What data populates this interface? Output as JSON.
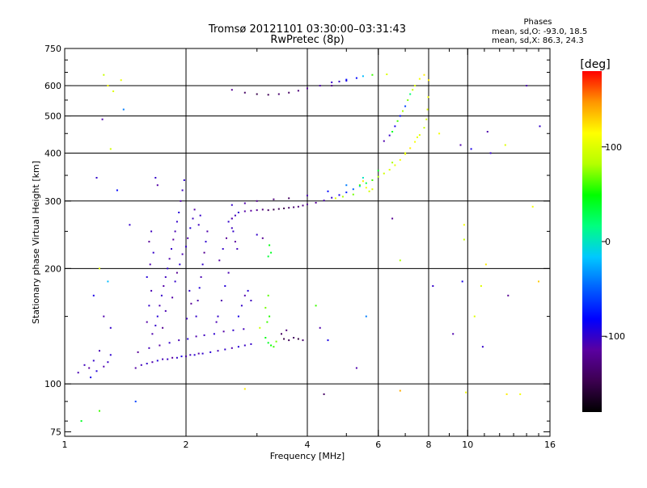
{
  "header": {
    "title_line1": "Tromsø 20121101 03:30:00–03:31:43",
    "title_line2": "RwPretec (8p)",
    "stats_title": "Phases",
    "stats_o": "mean, sd,O: -93.0, 18.5",
    "stats_x": "mean, sd,X:  86.3, 24.3"
  },
  "colorbar": {
    "label": "[deg]",
    "ticks": [
      {
        "value": 100,
        "label": "100"
      },
      {
        "value": 0,
        "label": "0"
      },
      {
        "value": -100,
        "label": "-100"
      }
    ],
    "range": [
      -180,
      180
    ]
  },
  "chart_data": {
    "type": "scatter",
    "title": "Tromsø 20121101 03:30:00–03:31:43",
    "subtitle": "RwPretec (8p)",
    "xlabel": "Frequency [MHz]",
    "ylabel": "Stationary phase Virtual Height [km]",
    "x_scale": "log",
    "y_scale": "log",
    "xlim": [
      1,
      16
    ],
    "ylim": [
      73,
      750
    ],
    "xticks": [
      {
        "value": 1,
        "label": "1",
        "major": true
      },
      {
        "value": 2,
        "label": "2",
        "major": true
      },
      {
        "value": 4,
        "label": "4",
        "major": true
      },
      {
        "value": 6,
        "label": "6",
        "major": true
      },
      {
        "value": 8,
        "label": "8",
        "major": true
      },
      {
        "value": 10,
        "label": "10",
        "major": true
      },
      {
        "value": 16,
        "label": "16",
        "major": false
      }
    ],
    "yticks": [
      {
        "value": 75,
        "label": "75",
        "major": false
      },
      {
        "value": 100,
        "label": "100",
        "major": true
      },
      {
        "value": 200,
        "label": "200",
        "major": true
      },
      {
        "value": 300,
        "label": "300",
        "major": true
      },
      {
        "value": 400,
        "label": "400",
        "major": true
      },
      {
        "value": 500,
        "label": "500",
        "major": true
      },
      {
        "value": 600,
        "label": "600",
        "major": true
      },
      {
        "value": 750,
        "label": "750",
        "major": false
      }
    ],
    "grid": true,
    "color_by": "phase (deg)",
    "colormap": [
      "#000000",
      "#3c0050",
      "#5a00a0",
      "#0000ff",
      "#0060ff",
      "#00c8ff",
      "#00ff80",
      "#00ff00",
      "#b4ff00",
      "#ffff00",
      "#ff9600",
      "#ff0000"
    ],
    "points": [
      [
        1.08,
        107,
        -108
      ],
      [
        1.12,
        112,
        -105
      ],
      [
        1.15,
        110,
        -115
      ],
      [
        1.18,
        115,
        -100
      ],
      [
        1.2,
        108,
        -95
      ],
      [
        1.25,
        111,
        -110
      ],
      [
        1.28,
        114,
        -102
      ],
      [
        1.3,
        119,
        -98
      ],
      [
        1.22,
        122,
        -107
      ],
      [
        1.16,
        104,
        -90
      ],
      [
        1.5,
        110,
        -112
      ],
      [
        1.55,
        112,
        -105
      ],
      [
        1.6,
        113,
        -100
      ],
      [
        1.65,
        114,
        -110
      ],
      [
        1.7,
        115,
        -95
      ],
      [
        1.75,
        116,
        -108
      ],
      [
        1.8,
        116,
        -102
      ],
      [
        1.85,
        117,
        -115
      ],
      [
        1.9,
        117,
        -100
      ],
      [
        1.95,
        118,
        -92
      ],
      [
        2.0,
        118,
        -110
      ],
      [
        2.05,
        119,
        -104
      ],
      [
        2.1,
        119,
        -98
      ],
      [
        2.15,
        120,
        -112
      ],
      [
        2.2,
        120,
        -100
      ],
      [
        2.3,
        121,
        -96
      ],
      [
        2.4,
        122,
        -106
      ],
      [
        2.5,
        123,
        -100
      ],
      [
        2.6,
        124,
        -110
      ],
      [
        2.7,
        125,
        -95
      ],
      [
        2.8,
        126,
        -102
      ],
      [
        2.9,
        127,
        -100
      ],
      [
        1.52,
        121,
        -118
      ],
      [
        1.62,
        124,
        -106
      ],
      [
        1.72,
        126,
        -112
      ],
      [
        1.82,
        128,
        -100
      ],
      [
        1.92,
        130,
        -108
      ],
      [
        2.02,
        131,
        -96
      ],
      [
        2.12,
        133,
        -110
      ],
      [
        2.22,
        134,
        -104
      ],
      [
        2.35,
        135,
        -98
      ],
      [
        2.48,
        137,
        -112
      ],
      [
        2.62,
        138,
        -100
      ],
      [
        2.78,
        139,
        -106
      ],
      [
        3.2,
        128,
        40
      ],
      [
        3.25,
        126,
        50
      ],
      [
        3.3,
        125,
        60
      ],
      [
        3.15,
        132,
        45
      ],
      [
        3.35,
        129,
        70
      ],
      [
        3.5,
        131,
        -150
      ],
      [
        3.6,
        130,
        -145
      ],
      [
        3.7,
        132,
        -140
      ],
      [
        3.8,
        131,
        -155
      ],
      [
        3.9,
        130,
        -135
      ],
      [
        3.18,
        145,
        60
      ],
      [
        3.22,
        150,
        55
      ],
      [
        3.15,
        158,
        70
      ],
      [
        3.2,
        170,
        65
      ],
      [
        3.25,
        220,
        40
      ],
      [
        3.2,
        215,
        35
      ],
      [
        3.22,
        230,
        45
      ],
      [
        3.1,
        240,
        -120
      ],
      [
        3.0,
        245,
        -100
      ],
      [
        1.65,
        135,
        -110
      ],
      [
        1.68,
        142,
        -100
      ],
      [
        1.7,
        150,
        -95
      ],
      [
        1.72,
        160,
        -108
      ],
      [
        1.74,
        170,
        -100
      ],
      [
        1.76,
        180,
        -112
      ],
      [
        1.78,
        190,
        -104
      ],
      [
        1.8,
        200,
        -98
      ],
      [
        1.82,
        212,
        -110
      ],
      [
        1.84,
        225,
        -100
      ],
      [
        1.86,
        238,
        -115
      ],
      [
        1.88,
        250,
        -108
      ],
      [
        1.9,
        265,
        -100
      ],
      [
        1.92,
        280,
        -95
      ],
      [
        1.94,
        300,
        -110
      ],
      [
        1.96,
        320,
        -104
      ],
      [
        1.98,
        340,
        -98
      ],
      [
        1.7,
        330,
        -112
      ],
      [
        1.68,
        345,
        -100
      ],
      [
        1.75,
        140,
        -120
      ],
      [
        1.78,
        155,
        -108
      ],
      [
        1.85,
        168,
        -112
      ],
      [
        1.88,
        185,
        -100
      ],
      [
        1.9,
        195,
        -120
      ],
      [
        1.93,
        205,
        -98
      ],
      [
        1.96,
        218,
        -108
      ],
      [
        2.0,
        228,
        -100
      ],
      [
        2.02,
        240,
        -110
      ],
      [
        2.05,
        255,
        -96
      ],
      [
        2.08,
        270,
        -104
      ],
      [
        2.1,
        285,
        -112
      ],
      [
        2.04,
        175,
        -100
      ],
      [
        2.06,
        162,
        -118
      ],
      [
        2.01,
        148,
        -105
      ],
      [
        2.12,
        150,
        -100
      ],
      [
        2.14,
        165,
        -110
      ],
      [
        2.16,
        178,
        -95
      ],
      [
        2.18,
        190,
        -108
      ],
      [
        2.2,
        205,
        -100
      ],
      [
        2.22,
        220,
        -120
      ],
      [
        2.24,
        235,
        -98
      ],
      [
        2.26,
        250,
        -110
      ],
      [
        2.15,
        260,
        -104
      ],
      [
        2.17,
        275,
        -100
      ],
      [
        1.6,
        145,
        -112
      ],
      [
        1.62,
        160,
        -100
      ],
      [
        1.64,
        175,
        -108
      ],
      [
        1.6,
        190,
        -95
      ],
      [
        1.63,
        205,
        -110
      ],
      [
        1.66,
        220,
        -100
      ],
      [
        1.62,
        235,
        -118
      ],
      [
        1.64,
        250,
        -104
      ],
      [
        2.4,
        150,
        -100
      ],
      [
        2.45,
        165,
        -110
      ],
      [
        2.5,
        180,
        -95
      ],
      [
        2.55,
        195,
        -108
      ],
      [
        2.42,
        210,
        -112
      ],
      [
        2.47,
        225,
        -100
      ],
      [
        2.52,
        240,
        -118
      ],
      [
        2.6,
        255,
        -104
      ],
      [
        2.38,
        145,
        -108
      ],
      [
        2.7,
        150,
        -90
      ],
      [
        2.75,
        160,
        -100
      ],
      [
        2.8,
        170,
        -110
      ],
      [
        2.85,
        175,
        -96
      ],
      [
        2.9,
        165,
        -104
      ],
      [
        2.55,
        265,
        -100
      ],
      [
        2.6,
        270,
        -110
      ],
      [
        2.65,
        275,
        -105
      ],
      [
        2.7,
        280,
        -98
      ],
      [
        2.8,
        282,
        -112
      ],
      [
        2.9,
        283,
        -115
      ],
      [
        3.0,
        284,
        -120
      ],
      [
        3.1,
        285,
        -130
      ],
      [
        3.2,
        284,
        -140
      ],
      [
        3.3,
        285,
        -150
      ],
      [
        3.4,
        286,
        -145
      ],
      [
        3.5,
        287,
        -150
      ],
      [
        3.6,
        288,
        -140
      ],
      [
        3.7,
        289,
        -135
      ],
      [
        3.8,
        290,
        -130
      ],
      [
        3.9,
        292,
        -125
      ],
      [
        4.0,
        294,
        -120
      ],
      [
        4.2,
        297,
        -115
      ],
      [
        4.4,
        301,
        -110
      ],
      [
        4.6,
        306,
        -100
      ],
      [
        4.8,
        311,
        -90
      ],
      [
        5.0,
        316,
        -70
      ],
      [
        5.2,
        322,
        -50
      ],
      [
        5.4,
        328,
        -20
      ],
      [
        5.6,
        334,
        30
      ],
      [
        5.8,
        340,
        60
      ],
      [
        6.0,
        347,
        80
      ],
      [
        6.2,
        354,
        95
      ],
      [
        6.4,
        362,
        100
      ],
      [
        6.6,
        372,
        105
      ],
      [
        6.8,
        384,
        110
      ],
      [
        7.0,
        398,
        115
      ],
      [
        7.2,
        412,
        120
      ],
      [
        7.4,
        428,
        110
      ],
      [
        7.6,
        446,
        100
      ],
      [
        7.8,
        466,
        90
      ],
      [
        7.9,
        490,
        95
      ],
      [
        7.95,
        520,
        100
      ],
      [
        7.98,
        560,
        110
      ],
      [
        8.0,
        620,
        120
      ],
      [
        2.6,
        293,
        -100
      ],
      [
        2.8,
        296,
        -110
      ],
      [
        3.0,
        300,
        -120
      ],
      [
        3.3,
        303,
        -130
      ],
      [
        3.6,
        305,
        -140
      ],
      [
        4.0,
        310,
        -110
      ],
      [
        4.5,
        318,
        -80
      ],
      [
        5.0,
        330,
        -40
      ],
      [
        5.5,
        345,
        0
      ],
      [
        6.0,
        360,
        40
      ],
      [
        6.5,
        378,
        80
      ],
      [
        7.0,
        400,
        100
      ],
      [
        7.5,
        440,
        105
      ],
      [
        2.6,
        270,
        -110
      ],
      [
        2.62,
        250,
        -100
      ],
      [
        2.65,
        235,
        -115
      ],
      [
        2.68,
        225,
        -105
      ],
      [
        2.6,
        585,
        -120
      ],
      [
        2.8,
        575,
        -140
      ],
      [
        3.0,
        570,
        -150
      ],
      [
        3.2,
        568,
        -145
      ],
      [
        3.4,
        570,
        -135
      ],
      [
        3.6,
        575,
        -140
      ],
      [
        3.8,
        582,
        -130
      ],
      [
        4.0,
        590,
        -120
      ],
      [
        4.3,
        600,
        -110
      ],
      [
        4.6,
        612,
        -100
      ],
      [
        5.0,
        622,
        -80
      ],
      [
        5.5,
        635,
        -20
      ],
      [
        5.8,
        640,
        60
      ],
      [
        6.3,
        642,
        100
      ],
      [
        6.2,
        430,
        -110
      ],
      [
        6.4,
        445,
        -100
      ],
      [
        6.6,
        470,
        -90
      ],
      [
        6.8,
        500,
        -80
      ],
      [
        7.0,
        530,
        -60
      ],
      [
        7.2,
        570,
        20
      ],
      [
        7.4,
        600,
        100
      ],
      [
        7.6,
        625,
        110
      ],
      [
        7.8,
        640,
        120
      ],
      [
        6.5,
        455,
        40
      ],
      [
        6.7,
        485,
        60
      ],
      [
        6.9,
        515,
        80
      ],
      [
        7.1,
        550,
        70
      ],
      [
        7.3,
        585,
        90
      ],
      [
        4.6,
        600,
        -120
      ],
      [
        4.8,
        615,
        -100
      ],
      [
        5.0,
        618,
        -90
      ],
      [
        5.3,
        628,
        -80
      ],
      [
        5.4,
        330,
        60
      ],
      [
        5.6,
        325,
        110
      ],
      [
        5.7,
        318,
        95
      ],
      [
        5.8,
        322,
        100
      ],
      [
        5.5,
        338,
        120
      ],
      [
        4.7,
        305,
        100
      ],
      [
        4.9,
        308,
        80
      ],
      [
        5.2,
        312,
        70
      ],
      [
        1.28,
        600,
        110
      ],
      [
        1.32,
        580,
        100
      ],
      [
        1.38,
        620,
        105
      ],
      [
        1.25,
        640,
        90
      ],
      [
        1.4,
        520,
        -40
      ],
      [
        1.24,
        490,
        -110
      ],
      [
        1.3,
        410,
        95
      ],
      [
        1.2,
        345,
        -100
      ],
      [
        1.35,
        320,
        -80
      ],
      [
        1.45,
        260,
        -100
      ],
      [
        1.22,
        200,
        100
      ],
      [
        1.28,
        185,
        -20
      ],
      [
        1.18,
        170,
        -90
      ],
      [
        1.25,
        150,
        -110
      ],
      [
        1.3,
        140,
        -100
      ],
      [
        1.5,
        90,
        -60
      ],
      [
        1.22,
        85,
        60
      ],
      [
        1.1,
        80,
        40
      ],
      [
        2.8,
        97,
        120
      ],
      [
        4.4,
        94,
        -140
      ],
      [
        6.8,
        96,
        140
      ],
      [
        9.9,
        95,
        110
      ],
      [
        12.5,
        94,
        120
      ],
      [
        13.5,
        94,
        110
      ],
      [
        9.6,
        420,
        -110
      ],
      [
        10.2,
        410,
        -90
      ],
      [
        11.2,
        455,
        -110
      ],
      [
        11.4,
        400,
        -100
      ],
      [
        12.4,
        420,
        100
      ],
      [
        9.8,
        260,
        110
      ],
      [
        9.8,
        238,
        90
      ],
      [
        11.1,
        205,
        120
      ],
      [
        10.8,
        180,
        100
      ],
      [
        9.2,
        135,
        -110
      ],
      [
        10.9,
        125,
        -100
      ],
      [
        12.6,
        170,
        -120
      ],
      [
        15.0,
        185,
        130
      ],
      [
        14.5,
        290,
        110
      ],
      [
        15.1,
        470,
        -100
      ],
      [
        14.0,
        600,
        -110
      ],
      [
        10.4,
        150,
        100
      ],
      [
        9.7,
        185,
        -90
      ],
      [
        4.2,
        160,
        60
      ],
      [
        4.3,
        140,
        -110
      ],
      [
        4.5,
        130,
        -90
      ],
      [
        5.3,
        110,
        -110
      ],
      [
        5.6,
        150,
        -40
      ],
      [
        6.5,
        270,
        -120
      ],
      [
        6.8,
        210,
        80
      ],
      [
        8.2,
        180,
        -100
      ],
      [
        8.5,
        450,
        110
      ],
      [
        3.45,
        135,
        -140
      ],
      [
        3.55,
        138,
        -130
      ],
      [
        3.05,
        140,
        90
      ]
    ]
  }
}
